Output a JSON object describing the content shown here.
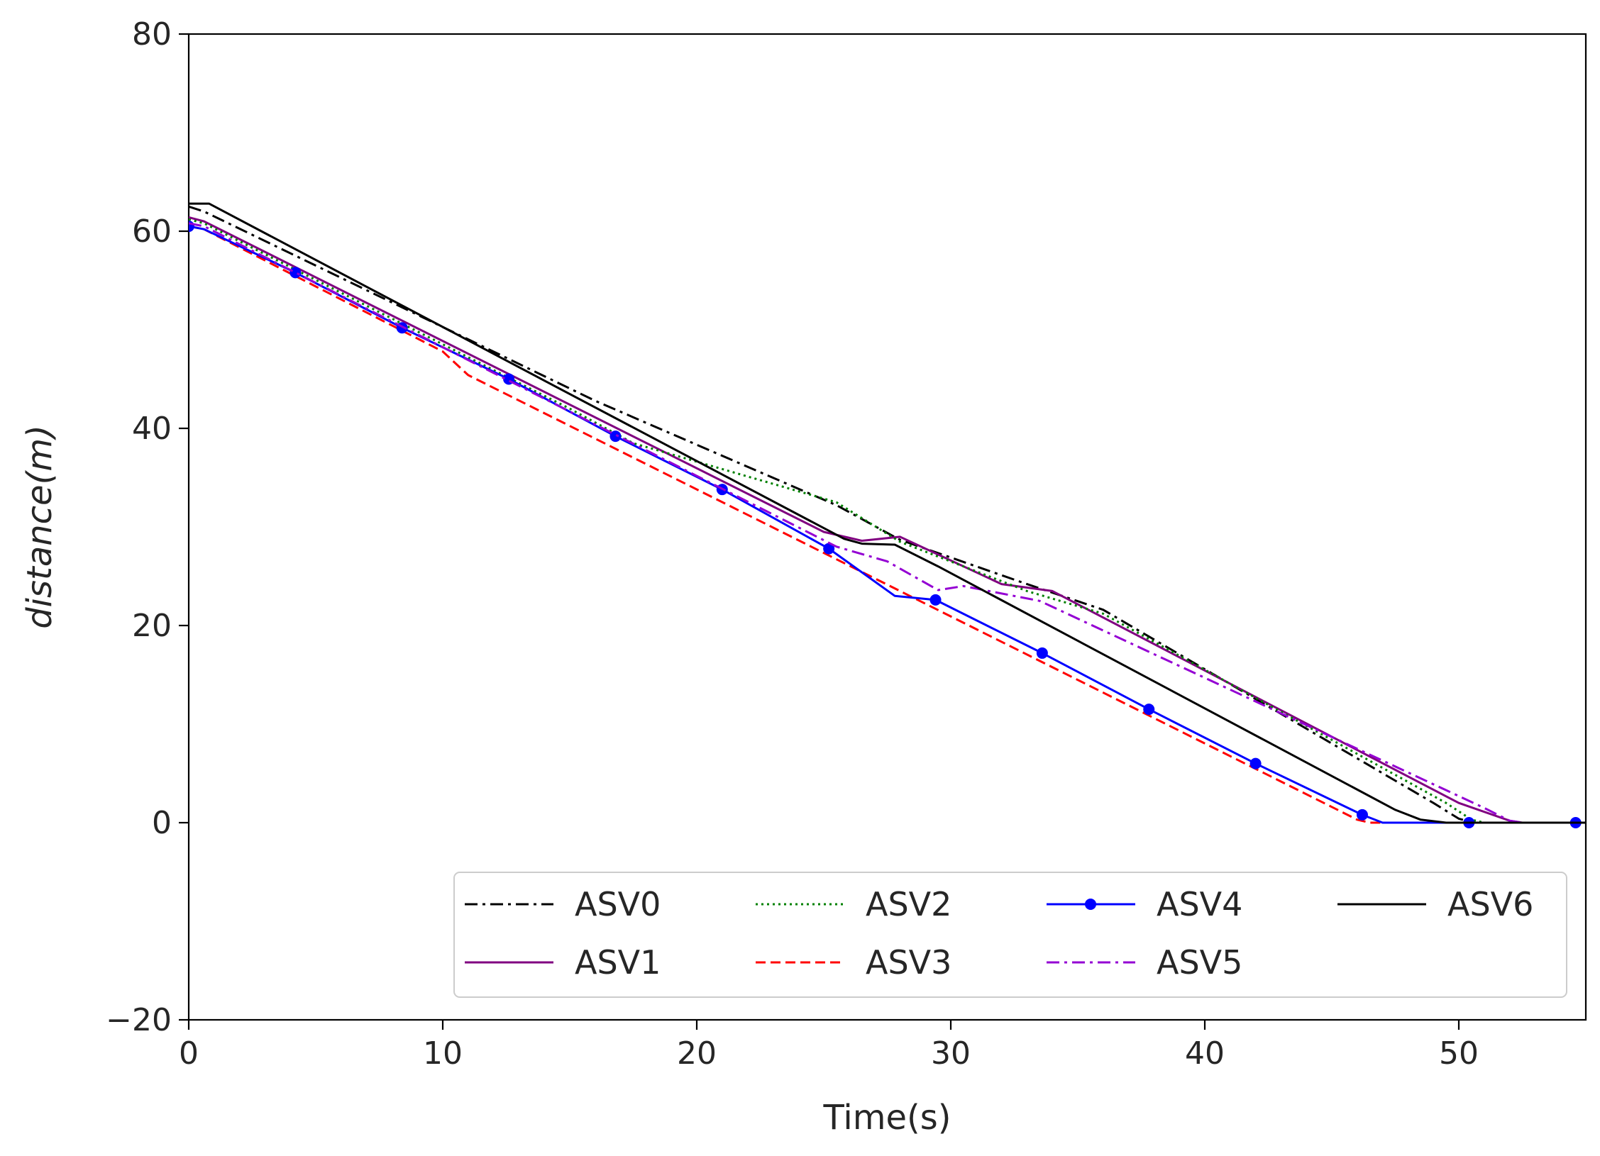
{
  "chart_data": {
    "type": "line",
    "title": "",
    "xlabel": "Time(s)",
    "ylabel": "distance(m)",
    "xlim": [
      0,
      55
    ],
    "ylim": [
      -20,
      80
    ],
    "xticks": [
      "0",
      "10",
      "20",
      "30",
      "40",
      "50"
    ],
    "yticks": [
      "−20",
      "0",
      "20",
      "40",
      "60",
      "80"
    ],
    "grid": false,
    "legend_position": "lower-right",
    "series": [
      {
        "name": "ASV0",
        "color": "#000000",
        "style": "dashdot",
        "x": [
          0,
          0.6,
          16,
          25.5,
          28,
          33,
          36,
          49,
          50,
          50.6,
          55
        ],
        "y": [
          62.5,
          62.0,
          42.8,
          32.2,
          28.7,
          24.2,
          21.6,
          2.0,
          0.4,
          0,
          0
        ]
      },
      {
        "name": "ASV1",
        "color": "#800080",
        "style": "solid",
        "x": [
          0,
          0.6,
          25,
          26.5,
          28,
          32,
          34,
          50,
          52,
          52.5,
          55
        ],
        "y": [
          61.4,
          61.0,
          29.5,
          28.6,
          29.0,
          24.2,
          23.5,
          2.0,
          0.2,
          0,
          0
        ]
      },
      {
        "name": "ASV2",
        "color": "#008000",
        "style": "dotted",
        "x": [
          0,
          0.6,
          15,
          17.5,
          25.5,
          28,
          33,
          36,
          49.5,
          50.5,
          51,
          55
        ],
        "y": [
          61.2,
          60.8,
          42.0,
          38.5,
          32.5,
          28.5,
          23.5,
          21.2,
          2.0,
          0.3,
          0,
          0
        ]
      },
      {
        "name": "ASV3",
        "color": "#ff0000",
        "style": "dashed",
        "x": [
          0,
          0.6,
          10,
          11,
          45,
          46,
          46.5,
          55
        ],
        "y": [
          60.5,
          60.2,
          47.8,
          45.4,
          1.6,
          0.3,
          0,
          0
        ]
      },
      {
        "name": "ASV4",
        "color": "#0000ff",
        "style": "solid-marker",
        "x": [
          0,
          0.6,
          4.2,
          8.4,
          12.6,
          16.8,
          21.0,
          25.2,
          27.8,
          29.4,
          33.6,
          37.8,
          42.0,
          46.2,
          47,
          50.4,
          54.6,
          55
        ],
        "y": [
          60.5,
          60.2,
          55.8,
          50.2,
          45.0,
          39.2,
          33.8,
          27.8,
          23.0,
          22.6,
          17.2,
          11.5,
          6.0,
          0.8,
          0,
          0,
          0,
          0
        ],
        "markers_x": [
          0,
          4.2,
          8.4,
          12.6,
          16.8,
          21.0,
          25.2,
          29.4,
          33.6,
          37.8,
          42.0,
          46.2,
          50.4,
          54.6
        ],
        "markers_y": [
          60.5,
          55.8,
          50.2,
          45.0,
          39.2,
          33.8,
          27.8,
          22.6,
          17.2,
          11.5,
          6.0,
          0.8,
          0,
          0
        ]
      },
      {
        "name": "ASV5",
        "color": "#9400d3",
        "style": "dashdot",
        "x": [
          0,
          0.6,
          25.5,
          27.5,
          29.5,
          30.5,
          33.5,
          51,
          52,
          52.5,
          55
        ],
        "y": [
          60.8,
          60.5,
          28.0,
          26.5,
          23.6,
          24.0,
          22.5,
          1.5,
          0.2,
          0,
          0
        ]
      },
      {
        "name": "ASV6",
        "color": "#000000",
        "style": "solid",
        "x": [
          0,
          0.8,
          25.8,
          26.5,
          27.8,
          29.5,
          47.5,
          48.5,
          49.5,
          55
        ],
        "y": [
          62.8,
          62.8,
          28.8,
          28.3,
          28.2,
          26.0,
          1.3,
          0.3,
          0,
          0
        ]
      }
    ]
  }
}
